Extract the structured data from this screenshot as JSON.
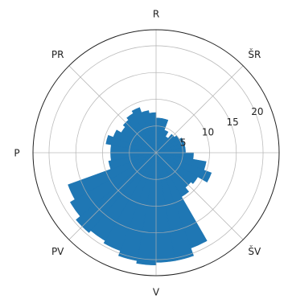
{
  "chart_data": {
    "type": "polar-bar",
    "radial_ticks": [
      5,
      10,
      15,
      20
    ],
    "rmax": 23,
    "grid": true,
    "color": "#1f77b4",
    "directions": [
      {
        "label": "R",
        "angle": 0
      },
      {
        "label": "ŠR",
        "angle": 45
      },
      {
        "label": "ŠV",
        "angle": 135
      },
      {
        "label": "V",
        "angle": 180
      },
      {
        "label": "PV",
        "angle": 225
      },
      {
        "label": "P",
        "angle": 270
      },
      {
        "label": "PR",
        "angle": 315
      }
    ],
    "sector_width_deg": 10,
    "sectors": [
      {
        "start": 0,
        "value": 6.5
      },
      {
        "start": 10,
        "value": 6.5
      },
      {
        "start": 20,
        "value": 4.5
      },
      {
        "start": 30,
        "value": 3.5
      },
      {
        "start": 40,
        "value": 4.5
      },
      {
        "start": 50,
        "value": 5.0
      },
      {
        "start": 60,
        "value": 5.5
      },
      {
        "start": 70,
        "value": 5.5
      },
      {
        "start": 80,
        "value": 5.5
      },
      {
        "start": 90,
        "value": 7.0
      },
      {
        "start": 100,
        "value": 9.5
      },
      {
        "start": 110,
        "value": 11.0
      },
      {
        "start": 120,
        "value": 9.0
      },
      {
        "start": 130,
        "value": 8.5
      },
      {
        "start": 140,
        "value": 9.5
      },
      {
        "start": 150,
        "value": 19.0
      },
      {
        "start": 160,
        "value": 20.5
      },
      {
        "start": 170,
        "value": 20.5
      },
      {
        "start": 180,
        "value": 21.0
      },
      {
        "start": 190,
        "value": 20.5
      },
      {
        "start": 200,
        "value": 19.5
      },
      {
        "start": 210,
        "value": 19.0
      },
      {
        "start": 220,
        "value": 19.5
      },
      {
        "start": 230,
        "value": 18.5
      },
      {
        "start": 240,
        "value": 17.5
      },
      {
        "start": 250,
        "value": 9.0
      },
      {
        "start": 260,
        "value": 8.5
      },
      {
        "start": 270,
        "value": 8.5
      },
      {
        "start": 280,
        "value": 9.5
      },
      {
        "start": 290,
        "value": 8.5
      },
      {
        "start": 300,
        "value": 7.5
      },
      {
        "start": 310,
        "value": 8.0
      },
      {
        "start": 320,
        "value": 8.5
      },
      {
        "start": 330,
        "value": 9.0
      },
      {
        "start": 340,
        "value": 8.0
      },
      {
        "start": 350,
        "value": 7.5
      }
    ]
  }
}
